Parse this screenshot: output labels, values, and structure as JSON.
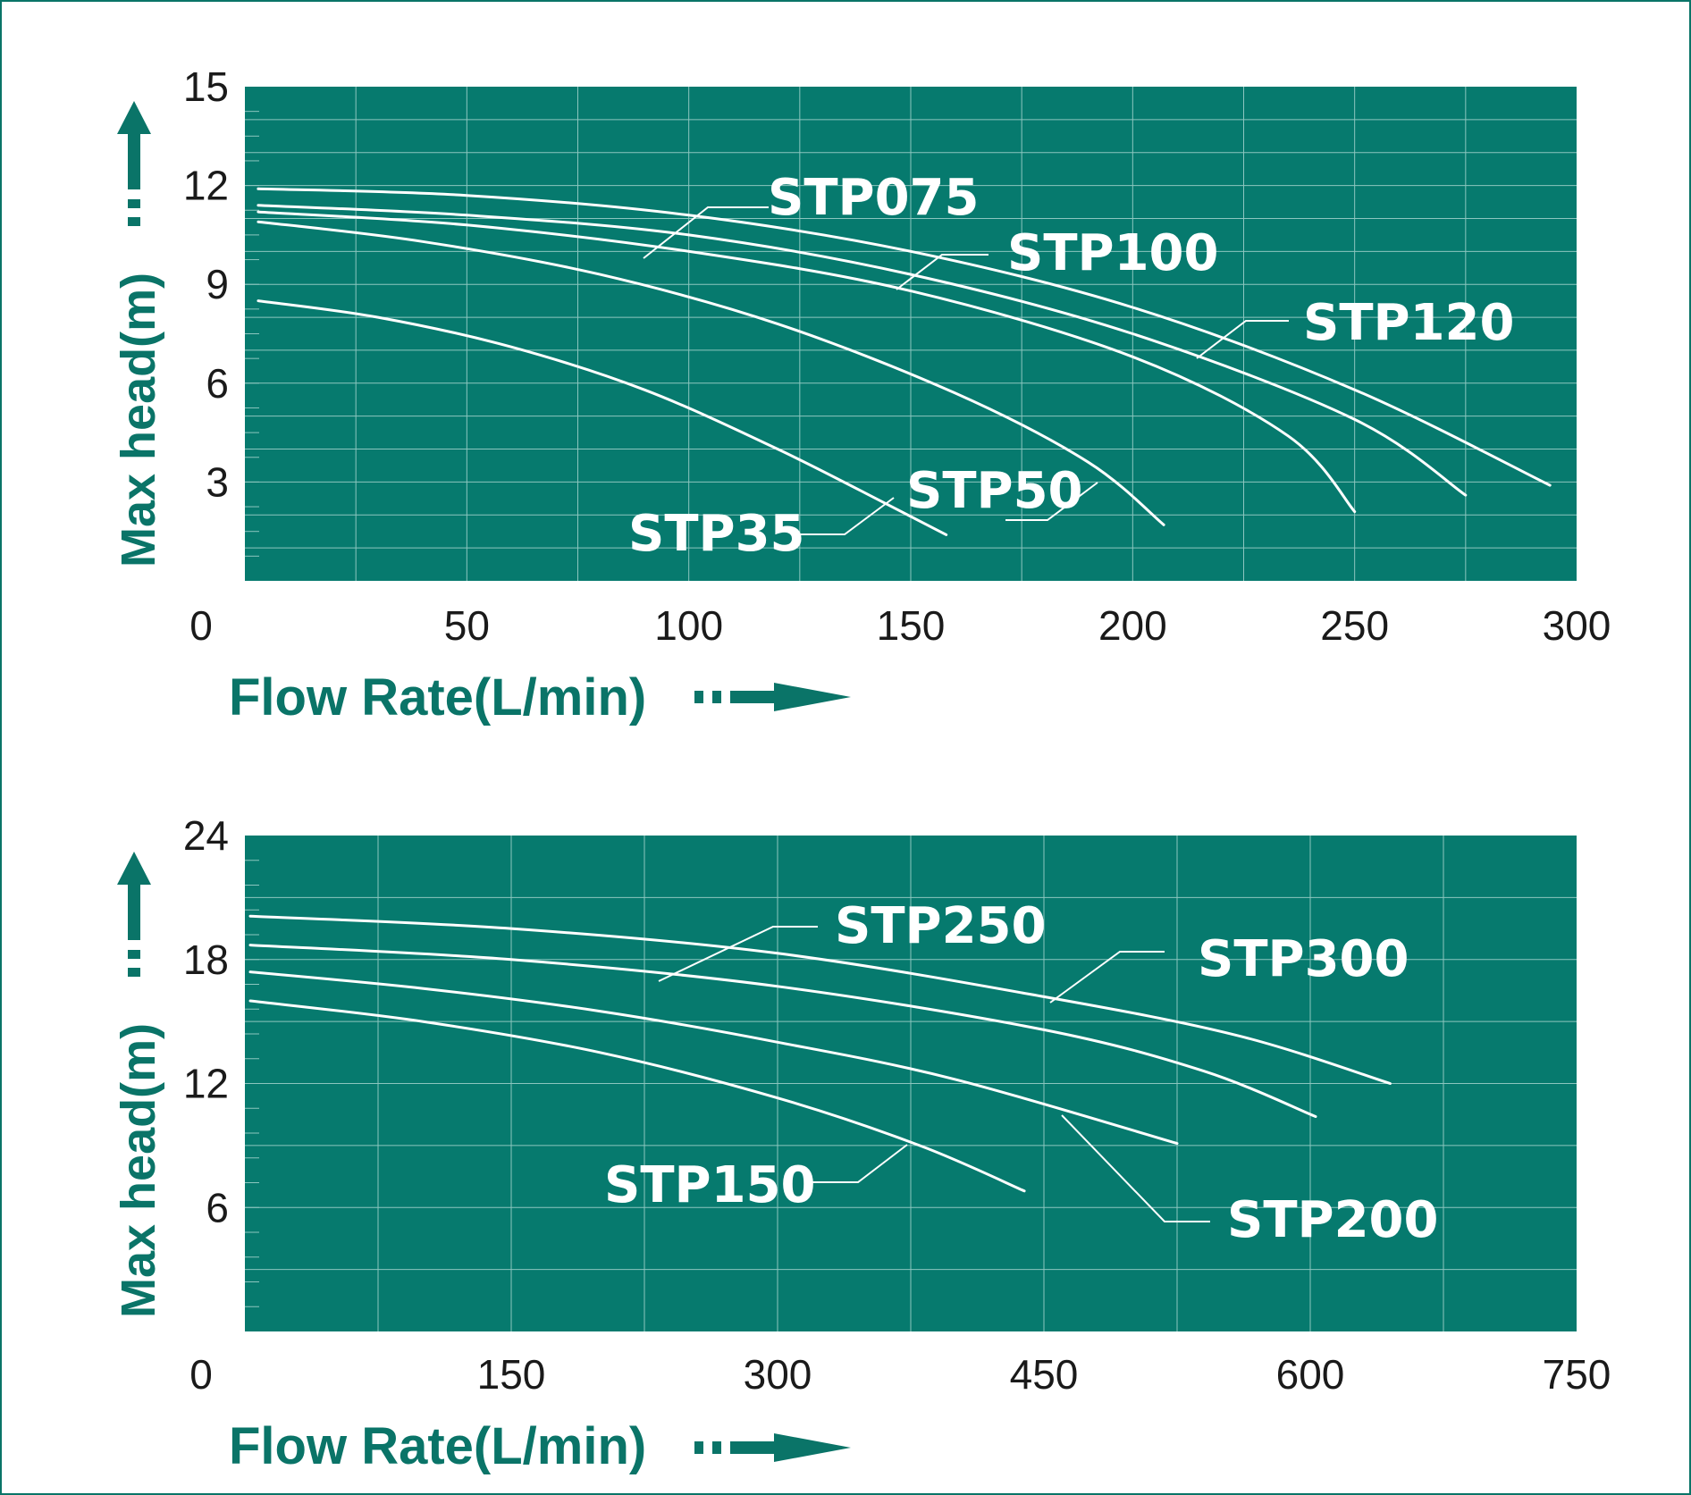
{
  "colors": {
    "plot_bg": "#067A6E",
    "grid": "#8CC6BF",
    "curve": "#FFFFFF",
    "axis_text": "#1A1A1A",
    "title_text": "#0A7468",
    "arrow": "#0A7468",
    "border": "#0A7468"
  },
  "chart_data": [
    {
      "type": "line",
      "xlabel": "Flow Rate(L/min)",
      "ylabel": "Max head(m)",
      "xlim": [
        0,
        300
      ],
      "ylim": [
        0,
        15
      ],
      "x_ticks": [
        0,
        50,
        100,
        150,
        200,
        250,
        300
      ],
      "x_tick_labels": [
        "0",
        "50",
        "100",
        "150",
        "200",
        "250",
        "300"
      ],
      "y_ticks": [
        3,
        6,
        9,
        12,
        15
      ],
      "y_tick_labels": [
        "3",
        "6",
        "9",
        "12",
        "15"
      ],
      "grid": true,
      "series": [
        {
          "name": "STP35",
          "x": [
            3,
            30,
            60,
            90,
            120,
            145,
            158
          ],
          "y": [
            8.5,
            8.0,
            7.1,
            5.8,
            4.0,
            2.3,
            1.4
          ]
        },
        {
          "name": "STP50",
          "x": [
            3,
            40,
            80,
            120,
            160,
            190,
            207
          ],
          "y": [
            10.9,
            10.3,
            9.3,
            7.8,
            5.7,
            3.6,
            1.7
          ]
        },
        {
          "name": "STP075",
          "x": [
            3,
            50,
            100,
            150,
            200,
            235,
            250
          ],
          "y": [
            11.2,
            10.8,
            10.0,
            8.8,
            6.8,
            4.4,
            2.1
          ]
        },
        {
          "name": "STP100",
          "x": [
            3,
            50,
            100,
            150,
            200,
            250,
            275
          ],
          "y": [
            11.4,
            11.1,
            10.5,
            9.3,
            7.5,
            4.9,
            2.6
          ]
        },
        {
          "name": "STP120",
          "x": [
            3,
            50,
            100,
            150,
            200,
            250,
            294
          ],
          "y": [
            11.9,
            11.7,
            11.1,
            10.0,
            8.3,
            5.8,
            2.9
          ]
        }
      ],
      "labels": [
        "STP35",
        "STP50",
        "STP075",
        "STP100",
        "STP120"
      ]
    },
    {
      "type": "line",
      "xlabel": "Flow Rate(L/min)",
      "ylabel": "Max head(m)",
      "xlim": [
        0,
        750
      ],
      "ylim": [
        0,
        24
      ],
      "x_ticks": [
        0,
        150,
        300,
        450,
        600,
        750
      ],
      "x_tick_labels": [
        "0",
        "150",
        "300",
        "450",
        "600",
        "750"
      ],
      "y_ticks": [
        6,
        12,
        18,
        24
      ],
      "y_tick_labels": [
        "6",
        "12",
        "18",
        "24"
      ],
      "grid": true,
      "series": [
        {
          "name": "STP150",
          "x": [
            3,
            100,
            200,
            300,
            380,
            439
          ],
          "y": [
            16.0,
            15.0,
            13.5,
            11.3,
            9.0,
            6.8
          ]
        },
        {
          "name": "STP200",
          "x": [
            3,
            100,
            200,
            300,
            400,
            525
          ],
          "y": [
            17.4,
            16.6,
            15.5,
            14.0,
            12.2,
            9.1
          ]
        },
        {
          "name": "STP250",
          "x": [
            3,
            150,
            300,
            450,
            540,
            603
          ],
          "y": [
            18.7,
            18.0,
            16.7,
            14.6,
            12.6,
            10.4
          ]
        },
        {
          "name": "STP300",
          "x": [
            3,
            150,
            300,
            450,
            560,
            645
          ],
          "y": [
            20.1,
            19.5,
            18.3,
            16.2,
            14.3,
            12.0
          ]
        }
      ],
      "labels": [
        "STP150",
        "STP200",
        "STP250",
        "STP300"
      ]
    }
  ]
}
